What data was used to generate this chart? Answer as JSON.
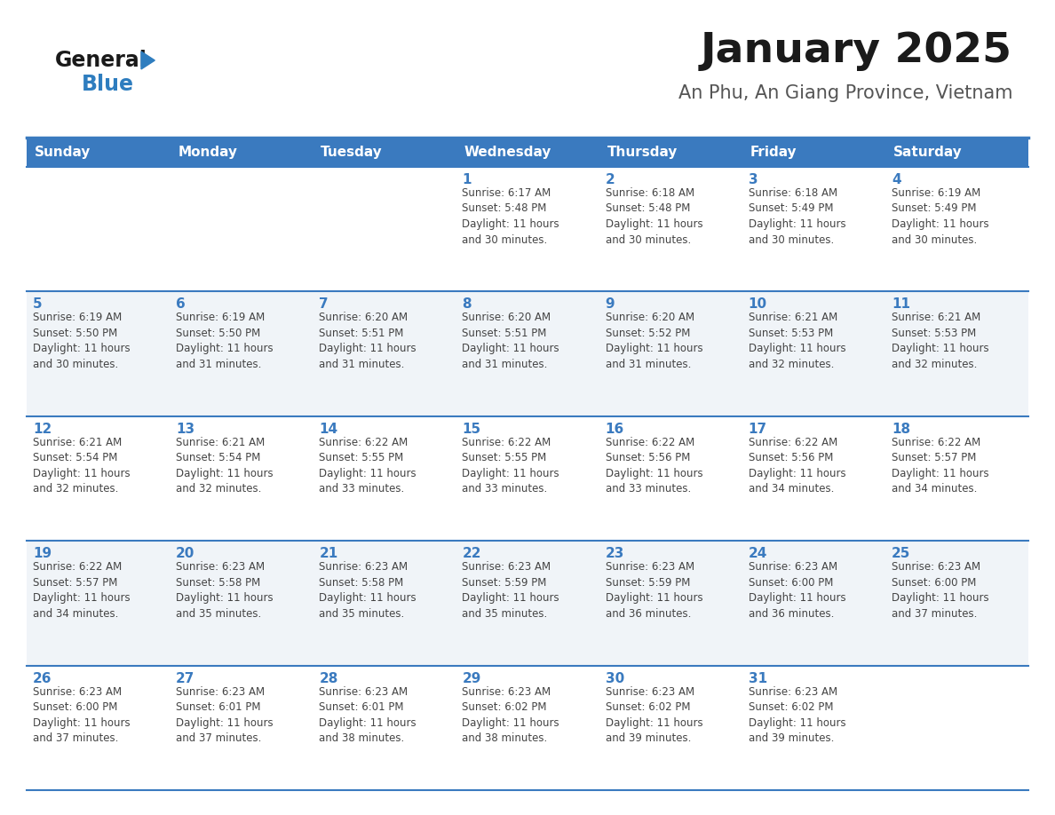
{
  "title": "January 2025",
  "subtitle": "An Phu, An Giang Province, Vietnam",
  "header_bg": "#3a7abf",
  "header_text_color": "#ffffff",
  "cell_bg_even": "#ffffff",
  "cell_bg_odd": "#f0f4f8",
  "day_number_color": "#3a7abf",
  "text_color": "#444444",
  "border_color": "#3a7abf",
  "separator_color": "#3a7abf",
  "days_of_week": [
    "Sunday",
    "Monday",
    "Tuesday",
    "Wednesday",
    "Thursday",
    "Friday",
    "Saturday"
  ],
  "logo_general_color": "#1a1a1a",
  "logo_blue_color": "#2e7dbf",
  "logo_triangle_color": "#2e7dbf",
  "calendar": [
    [
      {
        "day": "",
        "info": ""
      },
      {
        "day": "",
        "info": ""
      },
      {
        "day": "",
        "info": ""
      },
      {
        "day": "1",
        "info": "Sunrise: 6:17 AM\nSunset: 5:48 PM\nDaylight: 11 hours\nand 30 minutes."
      },
      {
        "day": "2",
        "info": "Sunrise: 6:18 AM\nSunset: 5:48 PM\nDaylight: 11 hours\nand 30 minutes."
      },
      {
        "day": "3",
        "info": "Sunrise: 6:18 AM\nSunset: 5:49 PM\nDaylight: 11 hours\nand 30 minutes."
      },
      {
        "day": "4",
        "info": "Sunrise: 6:19 AM\nSunset: 5:49 PM\nDaylight: 11 hours\nand 30 minutes."
      }
    ],
    [
      {
        "day": "5",
        "info": "Sunrise: 6:19 AM\nSunset: 5:50 PM\nDaylight: 11 hours\nand 30 minutes."
      },
      {
        "day": "6",
        "info": "Sunrise: 6:19 AM\nSunset: 5:50 PM\nDaylight: 11 hours\nand 31 minutes."
      },
      {
        "day": "7",
        "info": "Sunrise: 6:20 AM\nSunset: 5:51 PM\nDaylight: 11 hours\nand 31 minutes."
      },
      {
        "day": "8",
        "info": "Sunrise: 6:20 AM\nSunset: 5:51 PM\nDaylight: 11 hours\nand 31 minutes."
      },
      {
        "day": "9",
        "info": "Sunrise: 6:20 AM\nSunset: 5:52 PM\nDaylight: 11 hours\nand 31 minutes."
      },
      {
        "day": "10",
        "info": "Sunrise: 6:21 AM\nSunset: 5:53 PM\nDaylight: 11 hours\nand 32 minutes."
      },
      {
        "day": "11",
        "info": "Sunrise: 6:21 AM\nSunset: 5:53 PM\nDaylight: 11 hours\nand 32 minutes."
      }
    ],
    [
      {
        "day": "12",
        "info": "Sunrise: 6:21 AM\nSunset: 5:54 PM\nDaylight: 11 hours\nand 32 minutes."
      },
      {
        "day": "13",
        "info": "Sunrise: 6:21 AM\nSunset: 5:54 PM\nDaylight: 11 hours\nand 32 minutes."
      },
      {
        "day": "14",
        "info": "Sunrise: 6:22 AM\nSunset: 5:55 PM\nDaylight: 11 hours\nand 33 minutes."
      },
      {
        "day": "15",
        "info": "Sunrise: 6:22 AM\nSunset: 5:55 PM\nDaylight: 11 hours\nand 33 minutes."
      },
      {
        "day": "16",
        "info": "Sunrise: 6:22 AM\nSunset: 5:56 PM\nDaylight: 11 hours\nand 33 minutes."
      },
      {
        "day": "17",
        "info": "Sunrise: 6:22 AM\nSunset: 5:56 PM\nDaylight: 11 hours\nand 34 minutes."
      },
      {
        "day": "18",
        "info": "Sunrise: 6:22 AM\nSunset: 5:57 PM\nDaylight: 11 hours\nand 34 minutes."
      }
    ],
    [
      {
        "day": "19",
        "info": "Sunrise: 6:22 AM\nSunset: 5:57 PM\nDaylight: 11 hours\nand 34 minutes."
      },
      {
        "day": "20",
        "info": "Sunrise: 6:23 AM\nSunset: 5:58 PM\nDaylight: 11 hours\nand 35 minutes."
      },
      {
        "day": "21",
        "info": "Sunrise: 6:23 AM\nSunset: 5:58 PM\nDaylight: 11 hours\nand 35 minutes."
      },
      {
        "day": "22",
        "info": "Sunrise: 6:23 AM\nSunset: 5:59 PM\nDaylight: 11 hours\nand 35 minutes."
      },
      {
        "day": "23",
        "info": "Sunrise: 6:23 AM\nSunset: 5:59 PM\nDaylight: 11 hours\nand 36 minutes."
      },
      {
        "day": "24",
        "info": "Sunrise: 6:23 AM\nSunset: 6:00 PM\nDaylight: 11 hours\nand 36 minutes."
      },
      {
        "day": "25",
        "info": "Sunrise: 6:23 AM\nSunset: 6:00 PM\nDaylight: 11 hours\nand 37 minutes."
      }
    ],
    [
      {
        "day": "26",
        "info": "Sunrise: 6:23 AM\nSunset: 6:00 PM\nDaylight: 11 hours\nand 37 minutes."
      },
      {
        "day": "27",
        "info": "Sunrise: 6:23 AM\nSunset: 6:01 PM\nDaylight: 11 hours\nand 37 minutes."
      },
      {
        "day": "28",
        "info": "Sunrise: 6:23 AM\nSunset: 6:01 PM\nDaylight: 11 hours\nand 38 minutes."
      },
      {
        "day": "29",
        "info": "Sunrise: 6:23 AM\nSunset: 6:02 PM\nDaylight: 11 hours\nand 38 minutes."
      },
      {
        "day": "30",
        "info": "Sunrise: 6:23 AM\nSunset: 6:02 PM\nDaylight: 11 hours\nand 39 minutes."
      },
      {
        "day": "31",
        "info": "Sunrise: 6:23 AM\nSunset: 6:02 PM\nDaylight: 11 hours\nand 39 minutes."
      },
      {
        "day": "",
        "info": ""
      }
    ]
  ]
}
